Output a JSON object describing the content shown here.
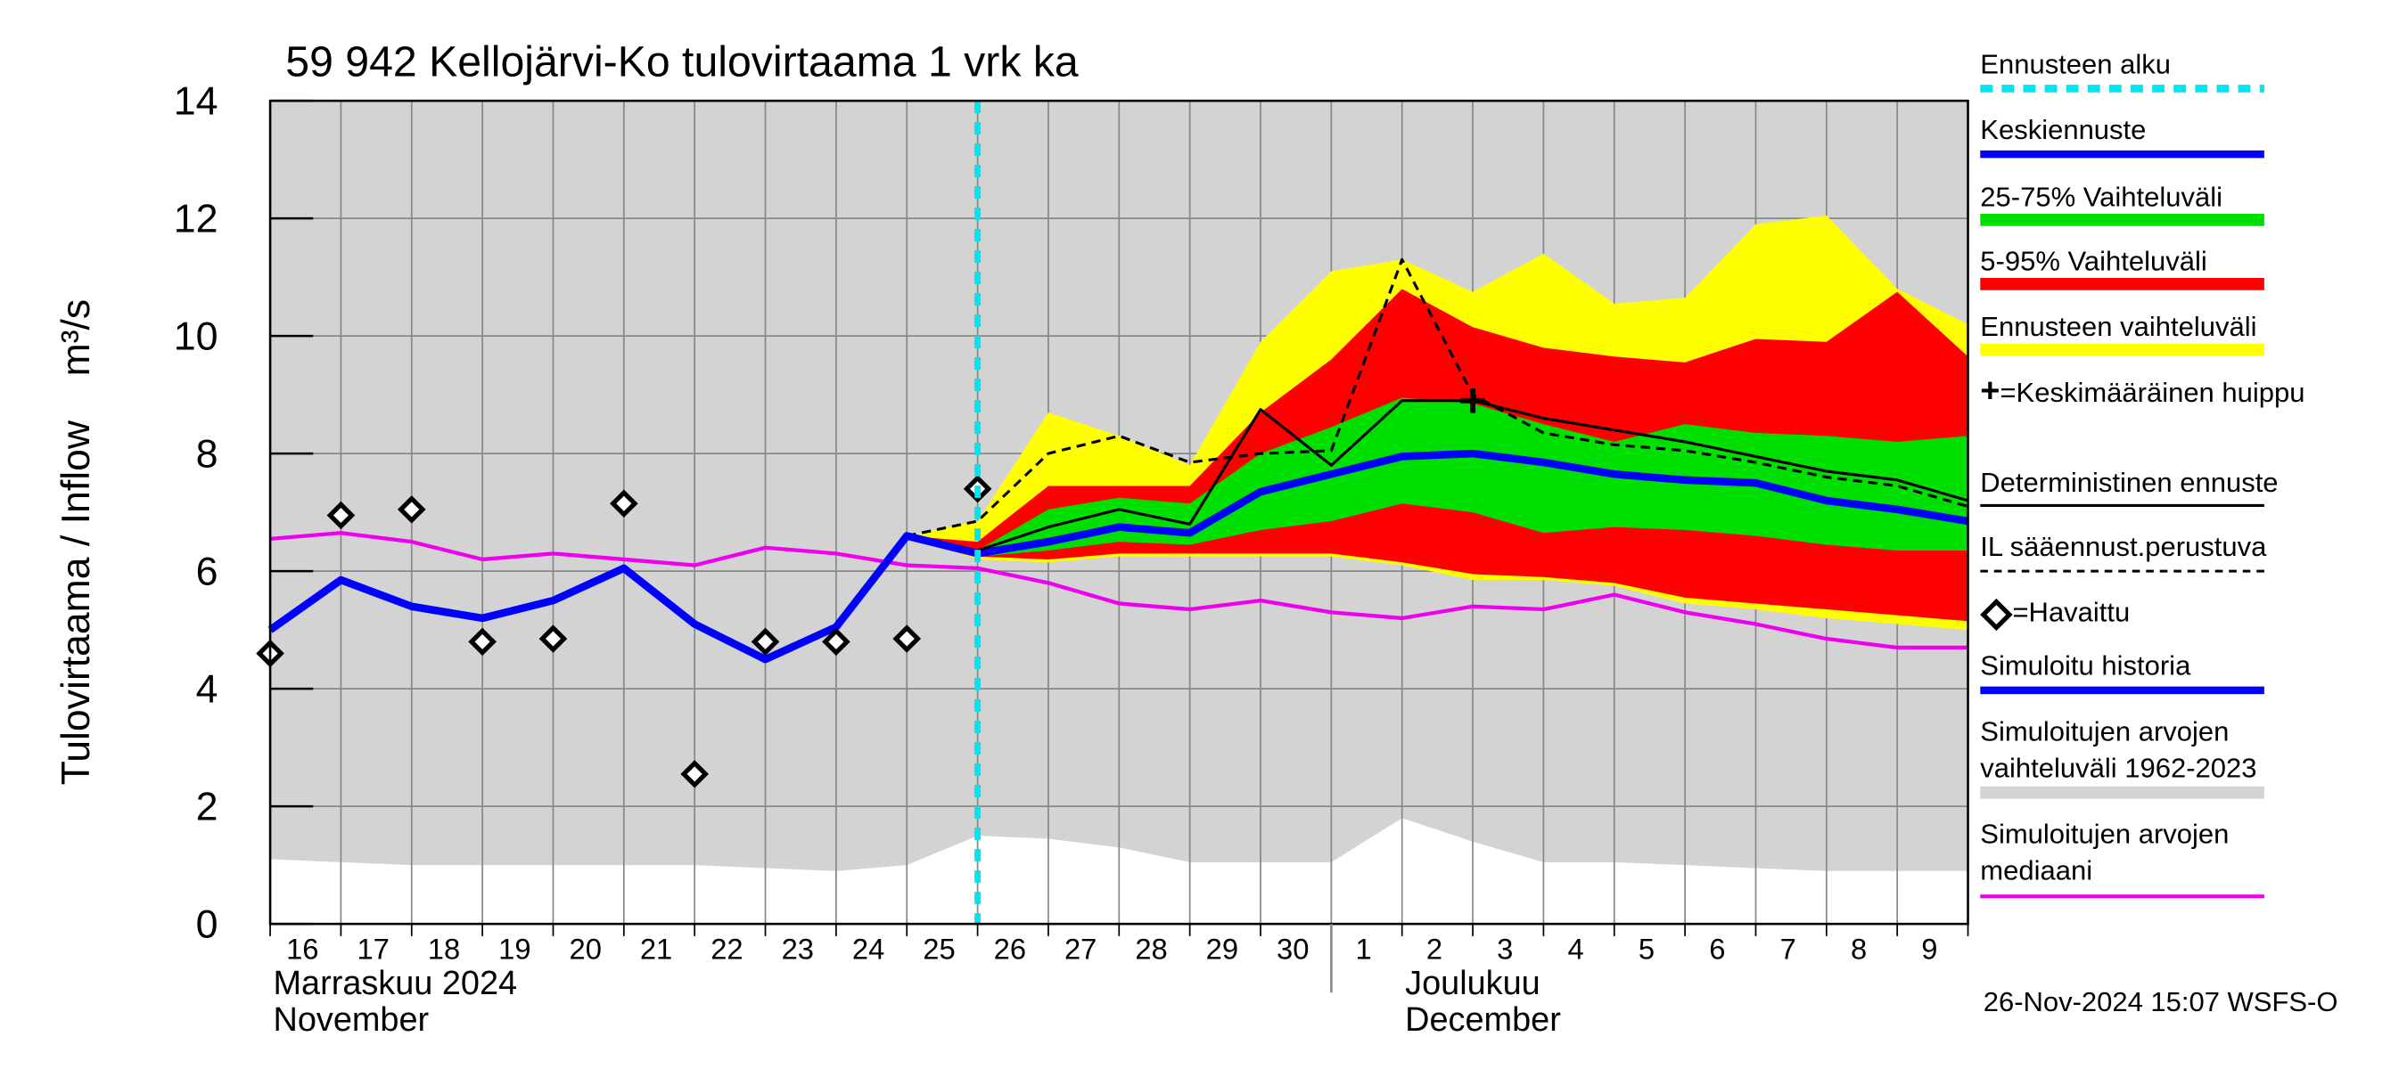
{
  "chart_data": {
    "type": "line",
    "title": "59 942 Kellojärvi-Ko tulovirtaama 1 vrk ka",
    "y_label": "Tulovirtaama / Inflow    m³/s",
    "footer": "26-Nov-2024 15:07 WSFS-O",
    "months": [
      {
        "fi": "Marraskuu 2024",
        "en": "November"
      },
      {
        "fi": "Joulukuu",
        "en": "December"
      }
    ],
    "categories": [
      "16",
      "17",
      "18",
      "19",
      "20",
      "21",
      "22",
      "23",
      "24",
      "25",
      "26",
      "27",
      "28",
      "29",
      "30",
      "1",
      "2",
      "3",
      "4",
      "5",
      "6",
      "7",
      "8",
      "9",
      null
    ],
    "ylim": [
      0,
      14
    ],
    "yticks": [
      0,
      2,
      4,
      6,
      8,
      10,
      12,
      14
    ],
    "grid": true,
    "series": [
      {
        "name": "Ennusteen alku",
        "kind": "vline",
        "color": "#00e5ee",
        "at": "26"
      },
      {
        "name": "Keskiennuste",
        "kind": "line",
        "color": "#0000ff",
        "width": 5,
        "values": [
          null,
          null,
          null,
          null,
          null,
          null,
          null,
          null,
          null,
          null,
          6.3,
          6.5,
          6.75,
          6.65,
          7.35,
          7.65,
          7.95,
          8.0,
          7.85,
          7.65,
          7.55,
          7.5,
          7.2,
          7.05,
          6.85
        ]
      },
      {
        "name": "25-75% Vaihteluväli",
        "kind": "band",
        "color": "#00e000",
        "low": [
          null,
          null,
          null,
          null,
          null,
          null,
          null,
          null,
          null,
          6.6,
          6.25,
          6.35,
          6.5,
          6.45,
          6.7,
          6.85,
          7.15,
          7.0,
          6.65,
          6.75,
          6.7,
          6.6,
          6.45,
          6.35,
          6.35
        ],
        "high": [
          null,
          null,
          null,
          null,
          null,
          null,
          null,
          null,
          null,
          6.6,
          6.35,
          7.05,
          7.25,
          7.15,
          8.0,
          8.45,
          8.95,
          8.85,
          8.5,
          8.2,
          8.5,
          8.35,
          8.3,
          8.2,
          8.3
        ]
      },
      {
        "name": "5-95% Vaihteluväli",
        "kind": "band",
        "color": "#ff0000",
        "low": [
          null,
          null,
          null,
          null,
          null,
          null,
          null,
          null,
          null,
          6.6,
          6.25,
          6.2,
          6.3,
          6.3,
          6.3,
          6.3,
          6.15,
          5.95,
          5.9,
          5.8,
          5.55,
          5.45,
          5.35,
          5.25,
          5.15
        ],
        "high": [
          null,
          null,
          null,
          null,
          null,
          null,
          null,
          null,
          null,
          6.6,
          6.5,
          7.45,
          7.45,
          7.45,
          8.7,
          9.6,
          10.8,
          10.15,
          9.8,
          9.65,
          9.55,
          9.95,
          9.9,
          10.75,
          9.65
        ]
      },
      {
        "name": "Ennusteen vaihteluväli",
        "kind": "band",
        "color": "#ffff00",
        "low": [
          null,
          null,
          null,
          null,
          null,
          null,
          null,
          null,
          null,
          6.6,
          6.2,
          6.15,
          6.25,
          6.25,
          6.25,
          6.25,
          6.1,
          5.85,
          5.85,
          5.75,
          5.45,
          5.35,
          5.2,
          5.1,
          5.0
        ],
        "high": [
          null,
          null,
          null,
          null,
          null,
          null,
          null,
          null,
          null,
          6.6,
          6.85,
          8.7,
          8.3,
          7.8,
          9.9,
          11.1,
          11.3,
          10.75,
          11.4,
          10.55,
          10.65,
          11.9,
          12.05,
          10.8,
          10.2
        ]
      },
      {
        "name": "=Keskimääräinen huippu",
        "kind": "marker",
        "marker": "plus",
        "color": "#000000",
        "values": [
          null,
          null,
          null,
          null,
          null,
          null,
          null,
          null,
          null,
          null,
          null,
          null,
          null,
          null,
          null,
          null,
          null,
          8.9,
          null,
          null,
          null,
          null,
          null,
          null,
          null
        ]
      },
      {
        "name": "Deterministinen ennuste",
        "kind": "line",
        "color": "#000000",
        "width": 1.8,
        "values": [
          null,
          null,
          null,
          null,
          null,
          null,
          null,
          null,
          null,
          6.6,
          6.35,
          6.75,
          7.05,
          6.8,
          8.75,
          7.8,
          8.9,
          8.9,
          8.6,
          8.4,
          8.2,
          7.95,
          7.7,
          7.55,
          7.2
        ]
      },
      {
        "name": "IL sääennust.perustuva",
        "kind": "line",
        "color": "#000000",
        "width": 1.8,
        "dash": true,
        "values": [
          null,
          null,
          null,
          null,
          null,
          null,
          null,
          null,
          null,
          6.6,
          6.85,
          8.0,
          8.3,
          7.85,
          8.0,
          8.05,
          11.3,
          9.0,
          8.35,
          8.15,
          8.05,
          7.85,
          7.6,
          7.45,
          7.1
        ]
      },
      {
        "name": "=Havaittu",
        "kind": "marker",
        "marker": "diamond",
        "color": "#000000",
        "values": [
          4.6,
          6.95,
          7.05,
          4.8,
          4.85,
          7.15,
          2.55,
          4.8,
          4.8,
          4.85,
          7.4,
          null,
          null,
          null,
          null,
          null,
          null,
          null,
          null,
          null,
          null,
          null,
          null,
          null,
          null
        ]
      },
      {
        "name": "Simuloitu historia",
        "kind": "line",
        "color": "#0000ff",
        "width": 5,
        "values": [
          5.0,
          5.85,
          5.4,
          5.2,
          5.5,
          6.05,
          5.1,
          4.5,
          5.05,
          6.6,
          6.3,
          null,
          null,
          null,
          null,
          null,
          null,
          null,
          null,
          null,
          null,
          null,
          null,
          null,
          null
        ]
      },
      {
        "name": "Simuloitujen arvojen vaihteluväli 1962-2023",
        "kind": "band",
        "color": "#d3d3d3",
        "low": [
          1.1,
          1.05,
          1.0,
          1.0,
          1.0,
          1.0,
          1.0,
          0.95,
          0.9,
          1.0,
          1.5,
          1.45,
          1.3,
          1.05,
          1.05,
          1.05,
          1.8,
          1.4,
          1.05,
          1.05,
          1.0,
          0.95,
          0.9,
          0.9,
          0.9
        ],
        "high": [
          14,
          14,
          14,
          14,
          14,
          14,
          14,
          14,
          14,
          14,
          14,
          14,
          14,
          14,
          14,
          14,
          14,
          14,
          14,
          14,
          14,
          14,
          14,
          14,
          14
        ]
      },
      {
        "name": "Simuloitujen arvojen mediaani",
        "kind": "line",
        "color": "#ee00ee",
        "width": 2.5,
        "values": [
          6.55,
          6.65,
          6.5,
          6.2,
          6.3,
          6.2,
          6.1,
          6.4,
          6.3,
          6.1,
          6.05,
          5.8,
          5.45,
          5.35,
          5.5,
          5.3,
          5.2,
          5.4,
          5.35,
          5.6,
          5.3,
          5.1,
          4.85,
          4.7,
          4.7
        ]
      }
    ]
  }
}
